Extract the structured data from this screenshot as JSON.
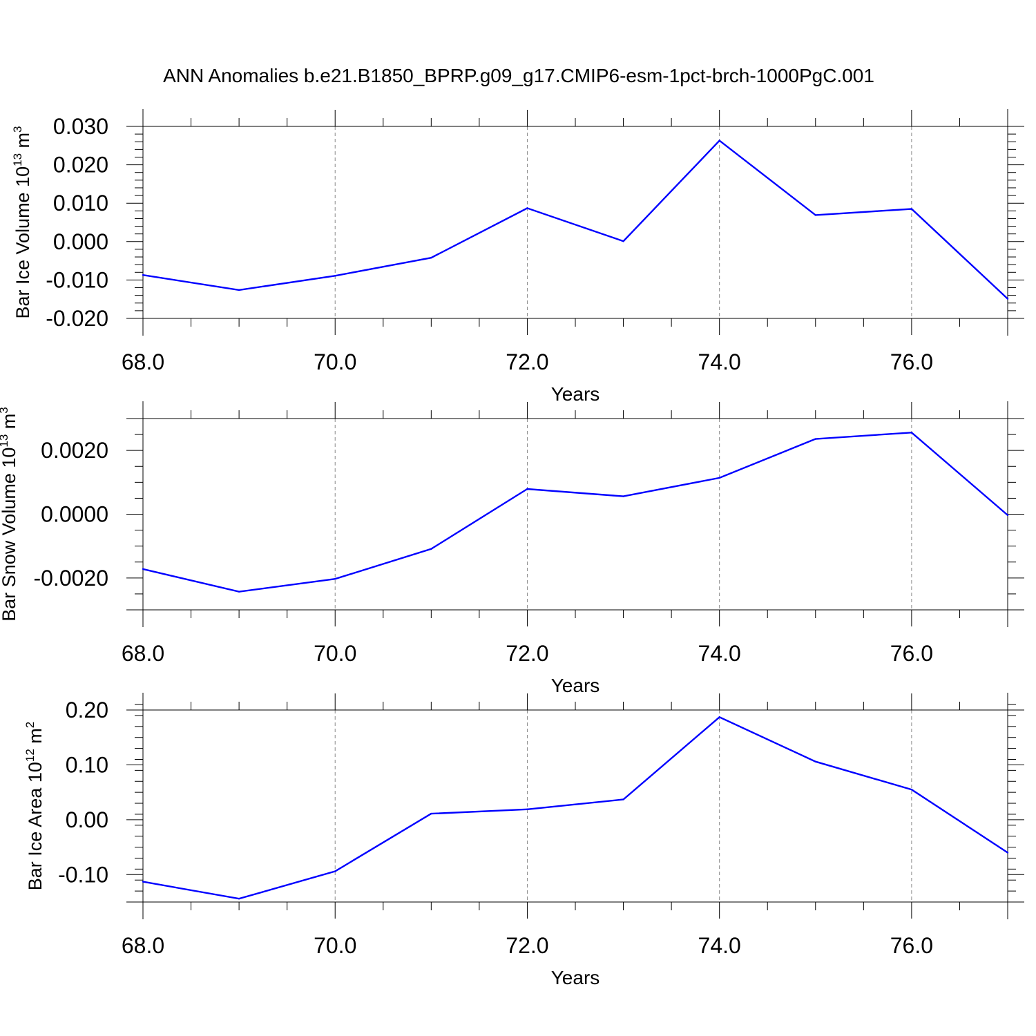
{
  "title": "ANN Anomalies b.e21.B1850_BPRP.g09_g17.CMIP6-esm-1pct-brch-1000PgC.001",
  "colors": {
    "line": "#0000ff",
    "axes": "#000000",
    "grid": "#888888"
  },
  "chart_data": [
    {
      "type": "line",
      "xlabel": "Years",
      "ylabel": {
        "text": "Bar Ice Volume 10",
        "sup1": "13",
        "mid": " m",
        "sup2": "3"
      },
      "xlim": [
        68,
        77
      ],
      "ylim": [
        -0.02,
        0.03
      ],
      "xticks": [
        68,
        70,
        72,
        74,
        76
      ],
      "xtick_labels": [
        "68.0",
        "70.0",
        "72.0",
        "74.0",
        "76.0"
      ],
      "yticks": [
        -0.02,
        -0.01,
        0.0,
        0.01,
        0.02,
        0.03
      ],
      "ytick_labels": [
        "-0.020",
        "-0.010",
        "0.000",
        "0.010",
        "0.020",
        "0.030"
      ],
      "x_minor_step": 0.5,
      "y_minor_step": 0.002,
      "grid": "vertical dashed at major x ticks",
      "series": [
        {
          "x": [
            68,
            69,
            70,
            71,
            72,
            73,
            74,
            75,
            76,
            77
          ],
          "values": [
            -0.0087,
            -0.0126,
            -0.0089,
            -0.0042,
            0.0087,
            0.0001,
            0.0263,
            0.0069,
            0.0085,
            -0.0149
          ]
        }
      ]
    },
    {
      "type": "line",
      "xlabel": "Years",
      "ylabel": {
        "text": "Bar Snow Volume 10",
        "sup1": "13",
        "mid": " m",
        "sup2": "3"
      },
      "xlim": [
        68,
        77
      ],
      "ylim": [
        -0.003,
        0.003
      ],
      "xticks": [
        68,
        70,
        72,
        74,
        76
      ],
      "xtick_labels": [
        "68.0",
        "70.0",
        "72.0",
        "74.0",
        "76.0"
      ],
      "yticks": [
        -0.002,
        0.0,
        0.002
      ],
      "ytick_labels": [
        "-0.0020",
        "0.0000",
        "0.0020"
      ],
      "x_minor_step": 0.5,
      "y_minor_step": 0.0005,
      "grid": "vertical dashed at major x ticks",
      "series": [
        {
          "x": [
            68,
            69,
            70,
            71,
            72,
            73,
            74,
            75,
            76,
            77
          ],
          "values": [
            -0.00172,
            -0.00243,
            -0.00203,
            -0.00109,
            0.00079,
            0.00056,
            0.00114,
            0.00236,
            0.00256,
            -3e-05
          ]
        }
      ]
    },
    {
      "type": "line",
      "xlabel": "Years",
      "ylabel": {
        "text": "Bar Ice Area 10",
        "sup1": "12",
        "mid": " m",
        "sup2": "2"
      },
      "xlim": [
        68,
        77
      ],
      "ylim": [
        -0.15,
        0.2
      ],
      "xticks": [
        68,
        70,
        72,
        74,
        76
      ],
      "xtick_labels": [
        "68.0",
        "70.0",
        "72.0",
        "74.0",
        "76.0"
      ],
      "yticks": [
        -0.1,
        0.0,
        0.1,
        0.2
      ],
      "ytick_labels": [
        "-0.10",
        "0.00",
        "0.10",
        "0.20"
      ],
      "x_minor_step": 0.5,
      "y_minor_step": 0.02,
      "grid": "vertical dashed at major x ticks",
      "series": [
        {
          "x": [
            68,
            69,
            70,
            71,
            72,
            73,
            74,
            75,
            76,
            77
          ],
          "values": [
            -0.113,
            -0.144,
            -0.094,
            0.011,
            0.019,
            0.037,
            0.187,
            0.106,
            0.055,
            -0.06
          ]
        }
      ]
    }
  ]
}
